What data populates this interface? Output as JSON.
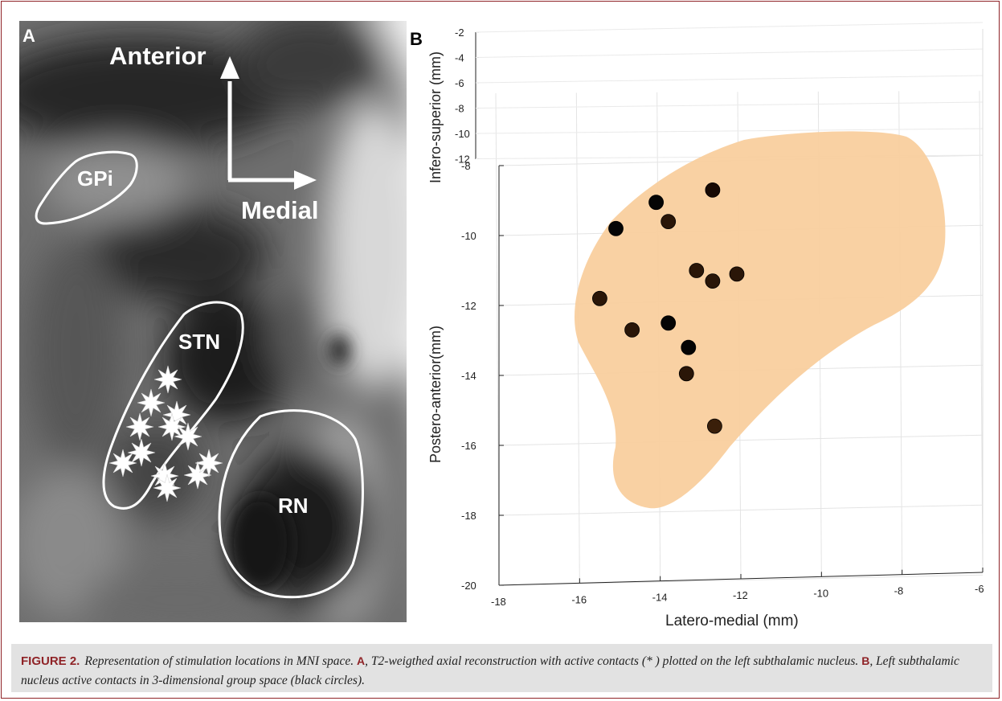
{
  "panel_a": {
    "letter": "A",
    "arrow_up_label": "Anterior",
    "arrow_right_label": "Medial",
    "regions": {
      "gpi": "GPi",
      "stn": "STN",
      "rn": "RN"
    },
    "markers": [
      {
        "x": 185,
        "y": 446
      },
      {
        "x": 164,
        "y": 475
      },
      {
        "x": 150,
        "y": 505
      },
      {
        "x": 196,
        "y": 490
      },
      {
        "x": 190,
        "y": 505
      },
      {
        "x": 210,
        "y": 517
      },
      {
        "x": 152,
        "y": 537
      },
      {
        "x": 129,
        "y": 550
      },
      {
        "x": 181,
        "y": 566
      },
      {
        "x": 184,
        "y": 581
      },
      {
        "x": 222,
        "y": 565
      },
      {
        "x": 236,
        "y": 550
      }
    ]
  },
  "chart_data": {
    "type": "scatter",
    "panel_letter": "B",
    "xlabel": "Latero-medial (mm)",
    "ylabel": "Postero-anterior(mm)",
    "zlabel": "Infero-superior (mm)",
    "x_ticks": [
      "-18",
      "-16",
      "-14",
      "-12",
      "-10",
      "-8",
      "-6"
    ],
    "y_ticks": [
      "-8",
      "-10",
      "-12",
      "-14",
      "-16",
      "-18",
      "-20"
    ],
    "z_ticks": [
      "-2",
      "-4",
      "-6",
      "-8",
      "-10",
      "-12"
    ],
    "xlim": [
      -18,
      -6
    ],
    "ylim": [
      -20,
      -8
    ],
    "grid": true,
    "region_color": "#f9cf9e",
    "points": [
      {
        "x": -12.7,
        "y": -8.7,
        "color": "#180a04"
      },
      {
        "x": -14.1,
        "y": -9.05,
        "color": "#050505"
      },
      {
        "x": -13.8,
        "y": -9.6,
        "color": "#2a1608"
      },
      {
        "x": -15.1,
        "y": -9.8,
        "color": "#050505"
      },
      {
        "x": -13.1,
        "y": -11.0,
        "color": "#2a1608"
      },
      {
        "x": -12.7,
        "y": -11.3,
        "color": "#2a1608"
      },
      {
        "x": -12.1,
        "y": -11.1,
        "color": "#2a1608"
      },
      {
        "x": -15.5,
        "y": -11.8,
        "color": "#2a1608"
      },
      {
        "x": -14.7,
        "y": -12.7,
        "color": "#2a1608"
      },
      {
        "x": -13.8,
        "y": -12.5,
        "color": "#050505"
      },
      {
        "x": -13.3,
        "y": -13.2,
        "color": "#050505"
      },
      {
        "x": -13.35,
        "y": -13.95,
        "color": "#2a1608"
      },
      {
        "x": -12.65,
        "y": -15.45,
        "color": "#3a1f0a"
      }
    ]
  },
  "caption": {
    "label": "FIGURE 2.",
    "text_1": "Representation of stimulation locations in MNI space.",
    "letter_a": "A",
    "text_2": ", T2-weigthed axial reconstruction with active contacts (* ) plotted on the left subthalamic nucleus.",
    "letter_b": "B",
    "text_3": ", Left subthalamic nucleus active contacts in 3-dimensional group space (black circles)."
  }
}
